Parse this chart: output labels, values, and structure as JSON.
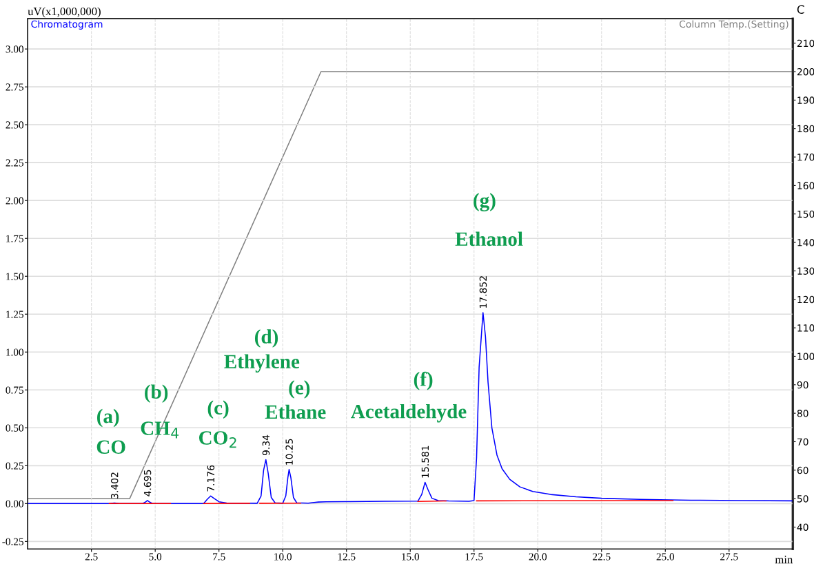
{
  "chart_data": {
    "type": "line",
    "xlabel": "min",
    "ylabel": "uV(x1,000,000)",
    "y2label": "C",
    "xlim": [
      0,
      30
    ],
    "ylim": [
      -0.3,
      3.2
    ],
    "y2lim": [
      32.3,
      218.6
    ],
    "xticks": [
      {
        "value": 2.5,
        "label": "2.5"
      },
      {
        "value": 5,
        "label": "5.0"
      },
      {
        "value": 7.5,
        "label": "7.5"
      },
      {
        "value": 10,
        "label": "10.0"
      },
      {
        "value": 12.5,
        "label": "12.5"
      },
      {
        "value": 15,
        "label": "15.0"
      },
      {
        "value": 17.5,
        "label": "17.5"
      },
      {
        "value": 20,
        "label": "20.0"
      },
      {
        "value": 22.5,
        "label": "22.5"
      },
      {
        "value": 25,
        "label": "25.0"
      },
      {
        "value": 27.5,
        "label": "27.5"
      }
    ],
    "yticks": [
      {
        "value": -0.25,
        "label": "-0.25"
      },
      {
        "value": 0,
        "label": "0.00"
      },
      {
        "value": 0.25,
        "label": "0.25"
      },
      {
        "value": 0.5,
        "label": "0.50"
      },
      {
        "value": 0.75,
        "label": "0.75"
      },
      {
        "value": 1,
        "label": "1.00"
      },
      {
        "value": 1.25,
        "label": "1.25"
      },
      {
        "value": 1.5,
        "label": "1.50"
      },
      {
        "value": 1.75,
        "label": "1.75"
      },
      {
        "value": 2,
        "label": "2.00"
      },
      {
        "value": 2.25,
        "label": "2.25"
      },
      {
        "value": 2.5,
        "label": "2.50"
      },
      {
        "value": 2.75,
        "label": "2.75"
      },
      {
        "value": 3,
        "label": "3.00"
      }
    ],
    "y2ticks": [
      40,
      50,
      60,
      70,
      80,
      90,
      100,
      110,
      120,
      130,
      140,
      150,
      160,
      170,
      180,
      190,
      200,
      210
    ],
    "grid": true,
    "marker": "none",
    "line_style": "solid",
    "series": [
      {
        "name": "Chromatogram",
        "color": "#0000ff",
        "x": [
          0,
          3.2,
          3.402,
          3.6,
          4.5,
          4.6,
          4.695,
          4.8,
          4.9,
          6.9,
          7.05,
          7.176,
          7.3,
          7.5,
          7.8,
          9.0,
          9.15,
          9.25,
          9.34,
          9.43,
          9.55,
          9.7,
          10.0,
          10.12,
          10.2,
          10.25,
          10.32,
          10.42,
          10.55,
          11.0,
          11.4,
          11.7,
          12.5,
          14.0,
          15.3,
          15.45,
          15.581,
          15.7,
          15.85,
          16.1,
          16.5,
          17.3,
          17.5,
          17.6,
          17.7,
          17.852,
          17.95,
          18.05,
          18.2,
          18.4,
          18.6,
          18.9,
          19.3,
          19.8,
          20.5,
          21.5,
          22.5,
          24,
          26,
          28,
          30
        ],
        "values": [
          0,
          0,
          0.004,
          0,
          0,
          0.008,
          0.02,
          0.008,
          0,
          0,
          0.03,
          0.05,
          0.035,
          0.012,
          0.004,
          0.002,
          0.05,
          0.22,
          0.29,
          0.2,
          0.04,
          0.005,
          0.002,
          0.05,
          0.17,
          0.225,
          0.17,
          0.04,
          0.005,
          0.003,
          0.01,
          0.012,
          0.013,
          0.015,
          0.016,
          0.06,
          0.14,
          0.09,
          0.035,
          0.02,
          0.017,
          0.015,
          0.02,
          0.3,
          0.9,
          1.26,
          1.1,
          0.8,
          0.5,
          0.32,
          0.23,
          0.16,
          0.11,
          0.08,
          0.06,
          0.045,
          0.035,
          0.028,
          0.022,
          0.02,
          0.018
        ]
      },
      {
        "name": "Column Temp.(Setting)",
        "color": "#808080",
        "axis": "y2",
        "x": [
          0,
          4.0,
          11.5,
          30
        ],
        "values": [
          50,
          50,
          200,
          200
        ]
      },
      {
        "color": "#ff0000",
        "x": [
          3.2,
          5.6
        ],
        "values": [
          0,
          0
        ]
      },
      {
        "color": "#ff0000",
        "x": [
          6.9,
          8.7
        ],
        "values": [
          0,
          0.002
        ]
      },
      {
        "color": "#ff0000",
        "x": [
          9.1,
          10.7
        ],
        "values": [
          0.002,
          0.003
        ]
      },
      {
        "color": "#ff0000",
        "x": [
          15.3,
          16.4
        ],
        "values": [
          0.014,
          0.017
        ]
      },
      {
        "color": "#ff0000",
        "x": [
          17.6,
          25.3
        ],
        "values": [
          0.018,
          0.02
        ]
      }
    ],
    "annotations": [
      {
        "text": "3.402",
        "x": 3.402,
        "y": 0.004
      },
      {
        "text": "4.695",
        "x": 4.695,
        "y": 0.02
      },
      {
        "text": "7.176",
        "x": 7.176,
        "y": 0.05
      },
      {
        "text": "9.34",
        "x": 9.34,
        "y": 0.29
      },
      {
        "text": "10.25",
        "x": 10.25,
        "y": 0.225
      },
      {
        "text": "15.581",
        "x": 15.581,
        "y": 0.14
      },
      {
        "text": "17.852",
        "x": 17.852,
        "y": 1.26
      },
      "(a)",
      "CO",
      "(b)",
      "CH$_{4}$",
      "(c)",
      "CO$_{2}$",
      "(d)",
      "Ethylene",
      "(e)",
      "Ethane",
      "(f)",
      "Acetaldehyde",
      "(g)",
      "Ethanol"
    ]
  }
}
